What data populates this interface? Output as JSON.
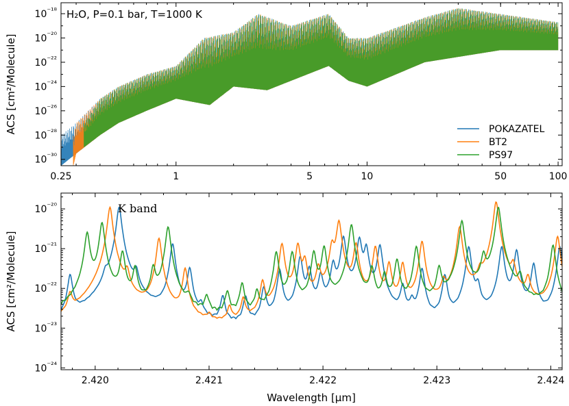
{
  "figure": {
    "top_annotation": "H₂O, P=0.1 bar, T=1000 K",
    "bottom_annotation": "K band",
    "shared_ylabel": "ACS  [cm²/Molecule]",
    "xlabel": "Wavelength [μm]"
  },
  "chart_data": [
    {
      "type": "line",
      "title": "",
      "annotation": "H₂O, P=0.1 bar, T=1000 K",
      "xlabel": "",
      "ylabel": "ACS  [cm²/Molecule]",
      "xscale": "log",
      "yscale": "log",
      "xlim": [
        0.25,
        105
      ],
      "ylim": [
        3e-31,
        8e-18
      ],
      "xticks": [
        0.25,
        1,
        5,
        10,
        50,
        100
      ],
      "xtick_labels": [
        "0.25",
        "1",
        "5",
        "10",
        "50",
        "100"
      ],
      "yticks": [
        1e-30,
        1e-28,
        1e-26,
        1e-24,
        1e-22,
        1e-20,
        1e-18
      ],
      "ytick_labels": [
        "10⁻³⁰",
        "10⁻²⁸",
        "10⁻²⁶",
        "10⁻²⁴",
        "10⁻²²",
        "10⁻²⁰",
        "10⁻¹⁸"
      ],
      "legend_position": "bottom-right",
      "grid": false,
      "series": [
        {
          "name": "POKAZATEL",
          "color": "#1f77b4",
          "x_range": [
            0.25,
            100
          ],
          "envelope_upper": [
            [
              0.25,
              1e-28
            ],
            [
              0.3,
              1e-27
            ],
            [
              0.4,
              1e-25
            ],
            [
              0.5,
              1e-24
            ],
            [
              0.7,
              1e-23
            ],
            [
              1.0,
              5e-23
            ],
            [
              1.4,
              1e-20
            ],
            [
              2.0,
              3e-20
            ],
            [
              2.7,
              1e-18
            ],
            [
              4.0,
              1e-19
            ],
            [
              6.3,
              1e-18
            ],
            [
              8.0,
              1e-20
            ],
            [
              10,
              1e-20
            ],
            [
              20,
              5e-19
            ],
            [
              30,
              3e-18
            ],
            [
              100,
              2e-19
            ]
          ],
          "envelope_lower": [
            [
              0.25,
              3e-31
            ],
            [
              0.3,
              3e-30
            ],
            [
              0.4,
              1e-28
            ],
            [
              0.5,
              1e-27
            ],
            [
              0.7,
              1e-26
            ],
            [
              1.0,
              1e-25
            ],
            [
              1.5,
              3e-26
            ],
            [
              2.0,
              1e-24
            ],
            [
              3.0,
              5e-25
            ],
            [
              4.0,
              3e-24
            ],
            [
              6.3,
              5e-23
            ],
            [
              8.0,
              3e-24
            ],
            [
              10,
              1e-24
            ],
            [
              20,
              1e-22
            ],
            [
              50,
              1e-21
            ],
            [
              100,
              1e-21
            ]
          ]
        },
        {
          "name": "BT2",
          "color": "#ff7f0e",
          "x_range": [
            0.29,
            100
          ],
          "envelope_upper": [
            [
              0.29,
              1e-28
            ],
            [
              0.3,
              1e-27
            ],
            [
              0.4,
              1e-25
            ],
            [
              0.5,
              1e-24
            ],
            [
              0.7,
              1e-23
            ],
            [
              1.0,
              5e-23
            ],
            [
              1.4,
              1e-20
            ],
            [
              2.0,
              3e-20
            ],
            [
              2.7,
              1e-18
            ],
            [
              4.0,
              1e-19
            ],
            [
              6.3,
              1e-18
            ],
            [
              8.0,
              1e-20
            ],
            [
              10,
              1e-20
            ],
            [
              20,
              5e-19
            ],
            [
              30,
              3e-18
            ],
            [
              100,
              2e-19
            ]
          ],
          "envelope_lower": [
            [
              0.29,
              3e-31
            ],
            [
              0.3,
              3e-30
            ],
            [
              0.4,
              1e-28
            ],
            [
              0.5,
              1e-27
            ],
            [
              0.7,
              1e-26
            ],
            [
              1.0,
              1e-25
            ],
            [
              1.5,
              3e-26
            ],
            [
              2.0,
              1e-24
            ],
            [
              3.0,
              5e-25
            ],
            [
              4.0,
              3e-24
            ],
            [
              6.3,
              5e-23
            ],
            [
              8.0,
              3e-24
            ],
            [
              10,
              1e-24
            ],
            [
              20,
              1e-22
            ],
            [
              50,
              1e-21
            ],
            [
              100,
              1e-21
            ]
          ]
        },
        {
          "name": "PS97",
          "color": "#2ca02c",
          "x_range": [
            0.33,
            100
          ],
          "envelope_upper": [
            [
              0.33,
              1e-27
            ],
            [
              0.4,
              1e-25
            ],
            [
              0.5,
              1e-24
            ],
            [
              0.7,
              1e-23
            ],
            [
              1.0,
              5e-23
            ],
            [
              1.4,
              1e-20
            ],
            [
              2.0,
              3e-20
            ],
            [
              2.7,
              1e-18
            ],
            [
              4.0,
              1e-19
            ],
            [
              6.3,
              1e-18
            ],
            [
              8.0,
              1e-20
            ],
            [
              10,
              1e-20
            ],
            [
              20,
              5e-19
            ],
            [
              30,
              3e-18
            ],
            [
              100,
              2e-19
            ]
          ],
          "envelope_lower": [
            [
              0.33,
              1e-29
            ],
            [
              0.4,
              1e-28
            ],
            [
              0.5,
              1e-27
            ],
            [
              0.7,
              1e-26
            ],
            [
              1.0,
              1e-25
            ],
            [
              1.5,
              3e-26
            ],
            [
              2.0,
              1e-24
            ],
            [
              3.0,
              5e-25
            ],
            [
              4.0,
              3e-24
            ],
            [
              6.3,
              5e-23
            ],
            [
              8.0,
              3e-24
            ],
            [
              10,
              1e-24
            ],
            [
              20,
              1e-22
            ],
            [
              50,
              1e-21
            ],
            [
              100,
              1e-21
            ]
          ]
        }
      ]
    },
    {
      "type": "line",
      "title": "",
      "annotation": "K band",
      "xlabel": "Wavelength [μm]",
      "ylabel": "ACS  [cm²/Molecule]",
      "xscale": "linear",
      "yscale": "log",
      "xlim": [
        2.4197,
        2.4241
      ],
      "ylim": [
        9e-25,
        2.5e-20
      ],
      "xticks": [
        2.42,
        2.421,
        2.422,
        2.423,
        2.424
      ],
      "xtick_labels": [
        "2.420",
        "2.421",
        "2.422",
        "2.423",
        "2.424"
      ],
      "yticks": [
        1e-24,
        1e-23,
        1e-22,
        1e-21,
        1e-20
      ],
      "ytick_labels": [
        "10⁻²⁴",
        "10⁻²³",
        "10⁻²²",
        "10⁻²¹",
        "10⁻²⁰"
      ],
      "grid": false,
      "series": [
        {
          "name": "POKAZATEL",
          "color": "#1f77b4",
          "baseline": 5e-24,
          "peaks": [
            [
              2.41978,
              2e-22
            ],
            [
              2.42009,
              1.2e-22
            ],
            [
              2.42021,
              1.1e-20
            ],
            [
              2.42036,
              2e-22
            ],
            [
              2.42068,
              1.3e-21
            ],
            [
              2.42083,
              3e-22
            ],
            [
              2.42093,
              2e-23
            ],
            [
              2.42112,
              5e-23
            ],
            [
              2.42132,
              5e-23
            ],
            [
              2.42148,
              9e-23
            ],
            [
              2.42162,
              2.8e-22
            ],
            [
              2.4218,
              6e-22
            ],
            [
              2.42188,
              3e-22
            ],
            [
              2.42198,
              2e-22
            ],
            [
              2.42209,
              4e-22
            ],
            [
              2.42218,
              2e-21
            ],
            [
              2.42232,
              1.8e-21
            ],
            [
              2.42238,
              1.1e-21
            ],
            [
              2.4225,
              1.2e-21
            ],
            [
              2.4227,
              1e-22
            ],
            [
              2.42278,
              3e-23
            ],
            [
              2.42287,
              3e-22
            ],
            [
              2.42307,
              2e-22
            ],
            [
              2.42328,
              1.1e-21
            ],
            [
              2.42336,
              1e-22
            ],
            [
              2.42357,
              1.1e-21
            ],
            [
              2.4237,
              9e-22
            ],
            [
              2.42385,
              4e-22
            ],
            [
              2.42408,
              1.1e-21
            ]
          ]
        },
        {
          "name": "BT2",
          "color": "#ff7f0e",
          "baseline": 3e-24,
          "peaks": [
            [
              2.41978,
              5e-23
            ],
            [
              2.42013,
              1.1e-20
            ],
            [
              2.42028,
              2e-22
            ],
            [
              2.42056,
              1.8e-21
            ],
            [
              2.42079,
              3e-22
            ],
            [
              2.421,
              6e-24
            ],
            [
              2.42118,
              2e-23
            ],
            [
              2.4213,
              4e-23
            ],
            [
              2.42147,
              1.3e-22
            ],
            [
              2.42164,
              1.3e-21
            ],
            [
              2.42178,
              1.3e-21
            ],
            [
              2.42184,
              5e-22
            ],
            [
              2.42196,
              3e-22
            ],
            [
              2.42208,
              1.2e-21
            ],
            [
              2.42214,
              5e-21
            ],
            [
              2.42229,
              1.3e-21
            ],
            [
              2.42246,
              1.1e-21
            ],
            [
              2.42258,
              4e-22
            ],
            [
              2.4227,
              4e-22
            ],
            [
              2.42287,
              1.5e-21
            ],
            [
              2.42306,
              1e-22
            ],
            [
              2.4232,
              3.5e-21
            ],
            [
              2.42338,
              1.5e-22
            ],
            [
              2.42352,
              1.5e-20
            ],
            [
              2.42367,
              3e-22
            ],
            [
              2.4238,
              1.4e-22
            ],
            [
              2.42406,
              2e-21
            ]
          ]
        },
        {
          "name": "PS97",
          "color": "#2ca02c",
          "baseline": 1.2e-23,
          "peaks": [
            [
              2.41993,
              2.5e-21
            ],
            [
              2.42006,
              4.5e-21
            ],
            [
              2.42024,
              8e-22
            ],
            [
              2.42035,
              3e-22
            ],
            [
              2.42051,
              3e-22
            ],
            [
              2.42064,
              3.5e-21
            ],
            [
              2.42082,
              3e-23
            ],
            [
              2.42098,
              4e-23
            ],
            [
              2.42116,
              6e-23
            ],
            [
              2.42129,
              1.1e-22
            ],
            [
              2.42142,
              6e-23
            ],
            [
              2.42159,
              8e-22
            ],
            [
              2.42173,
              8e-22
            ],
            [
              2.42192,
              8e-22
            ],
            [
              2.42201,
              1.1e-21
            ],
            [
              2.42225,
              4e-21
            ],
            [
              2.42243,
              3e-22
            ],
            [
              2.42254,
              2e-22
            ],
            [
              2.42265,
              5e-22
            ],
            [
              2.42282,
              1.1e-21
            ],
            [
              2.42302,
              3e-22
            ],
            [
              2.42322,
              5e-21
            ],
            [
              2.42341,
              6e-22
            ],
            [
              2.42354,
              1.1e-20
            ],
            [
              2.42373,
              1.5e-22
            ],
            [
              2.42402,
              1.2e-21
            ]
          ]
        }
      ]
    }
  ]
}
